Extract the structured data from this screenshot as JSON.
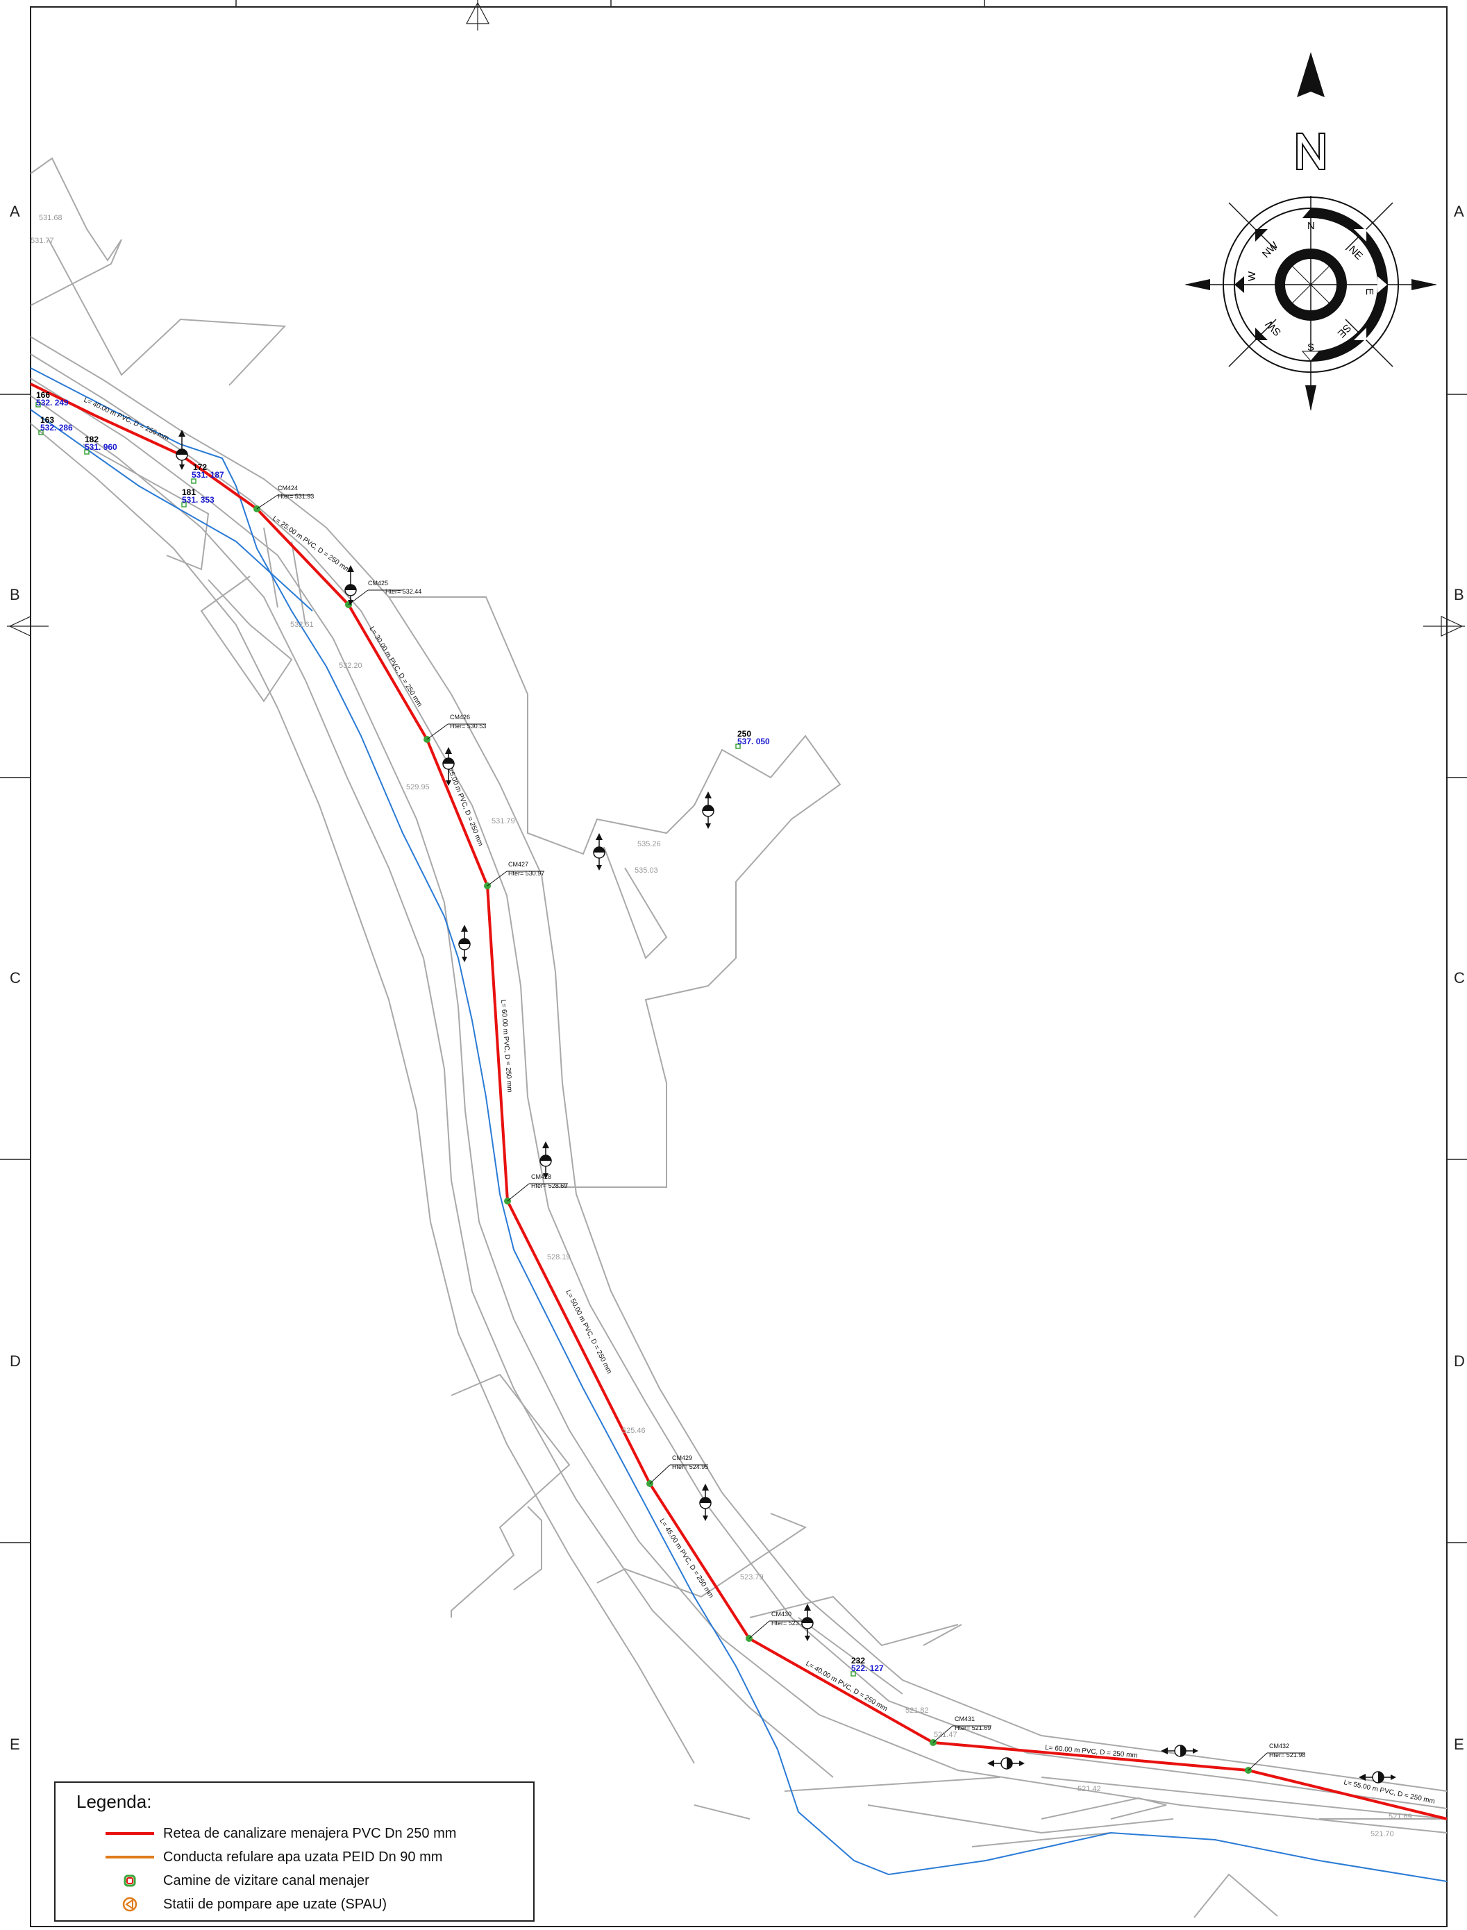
{
  "frame": {
    "row_letters": [
      "A",
      "B",
      "C",
      "D",
      "E"
    ]
  },
  "compass": {
    "north_label": "N",
    "points": [
      "N",
      "NE",
      "E",
      "SE",
      "S",
      "SW",
      "W",
      "NW"
    ]
  },
  "survey_points": [
    {
      "id": "166",
      "elev": "532. 249"
    },
    {
      "id": "163",
      "elev": "532. 286"
    },
    {
      "id": "182",
      "elev": "531. 960"
    },
    {
      "id": "172",
      "elev": "531. 187"
    },
    {
      "id": "181",
      "elev": "531. 353"
    },
    {
      "id": "250",
      "elev": "537. 050"
    },
    {
      "id": "232",
      "elev": "522. 127"
    }
  ],
  "manholes": [
    {
      "name": "CM424",
      "hter": "Hter= 531.93"
    },
    {
      "name": "CM425",
      "hter": "Hter= 532.44"
    },
    {
      "name": "CM426",
      "hter": "Hter= 530.53"
    },
    {
      "name": "CM427",
      "hter": "Hter= 530.97"
    },
    {
      "name": "CM428",
      "hter": "Hter= 528.69"
    },
    {
      "name": "CM429",
      "hter": "Hter= 524.95"
    },
    {
      "name": "CM430",
      "hter": "Hter= 523.37"
    },
    {
      "name": "CM431",
      "hter": "Hter= 521.69"
    },
    {
      "name": "CM432",
      "hter": "Hter= 521.98"
    }
  ],
  "segments": [
    "L= 40.00 m  PVC, D = 250 mm",
    "L= 25.00 m  PVC, D = 250 mm",
    "L= 30.00 m  PVC, D = 250 mm",
    "L= 25.00 m  PVC, D = 250 mm",
    "L= 60.00 m  PVC, D = 250 mm",
    "L= 50.00 m  PVC, D = 250 mm",
    "L= 45.00 m  PVC, D = 250 mm",
    "L= 40.00 m  PVC, D = 250 mm",
    "L= 60.00 m  PVC, D = 250 mm",
    "L= 55.00 m  PVC, D = 250 mm"
  ],
  "spot_elevations": [
    "531.68",
    "531.77",
    "532.61",
    "532.20",
    "529.95",
    "531.79",
    "535.26",
    "535.03",
    "528.19",
    "525.46",
    "523.79",
    "521.82",
    "521.47",
    "521.42",
    "521.69",
    "521.70"
  ],
  "legend": {
    "title": "Legenda:",
    "items": [
      {
        "label": "Retea de canalizare menajera PVC Dn 250 mm",
        "color": "#e8110f",
        "symbol": "line"
      },
      {
        "label": "Conducta refulare apa uzata PEID Dn 90 mm",
        "color": "#e07b1a",
        "symbol": "line"
      },
      {
        "label": "Camine de vizitare canal menajer",
        "color": "#3aa53a",
        "symbol": "manhole"
      },
      {
        "label": "Statii de pompare ape uzate (SPAU)",
        "color": "#e07b1a",
        "symbol": "pump"
      }
    ]
  },
  "colors": {
    "sewer": "#e8110f",
    "stream": "#2a7bd6",
    "road": "#a9a9a9",
    "frame": "#222222"
  }
}
